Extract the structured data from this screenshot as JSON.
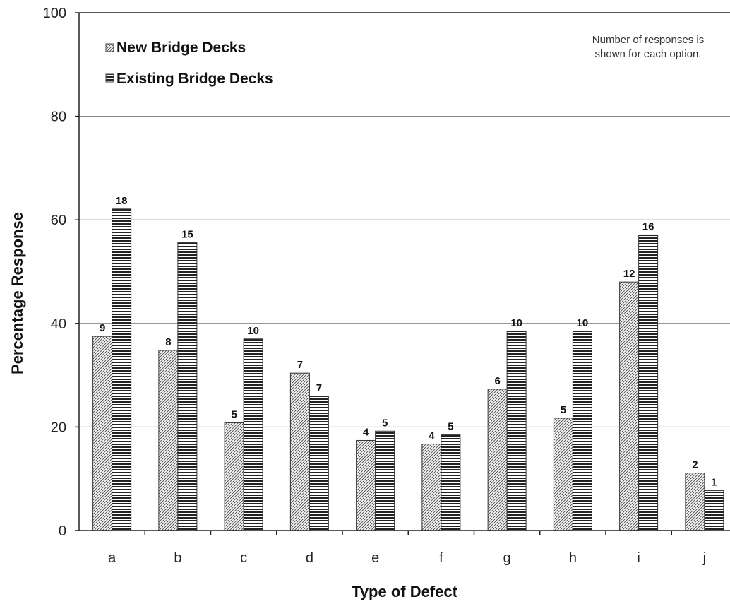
{
  "chart_data": {
    "type": "bar",
    "xlabel": "Type of Defect",
    "ylabel": "Percentage Response",
    "ylim": [
      0,
      100
    ],
    "y_ticks": [
      "0",
      "20",
      "40",
      "60",
      "80",
      "100"
    ],
    "grid": true,
    "legend_position": "top-left",
    "note": [
      "Number of responses is",
      "shown for each option."
    ],
    "categories": [
      "a",
      "b",
      "c",
      "d",
      "e",
      "f",
      "g",
      "h",
      "i",
      "j"
    ],
    "series": [
      {
        "name": "New Bridge Decks",
        "pattern": "diagonal-hatch",
        "values": [
          37.5,
          34.8,
          20.8,
          30.4,
          17.4,
          16.7,
          27.3,
          21.7,
          48.0,
          11.1
        ],
        "labels": [
          "9",
          "8",
          "5",
          "7",
          "4",
          "4",
          "6",
          "5",
          "12",
          "2"
        ]
      },
      {
        "name": "Existing Bridge Decks",
        "pattern": "horizontal-stripes",
        "values": [
          62.1,
          55.6,
          37.0,
          25.9,
          19.2,
          18.5,
          38.5,
          38.5,
          57.1,
          7.7
        ],
        "labels": [
          "18",
          "15",
          "10",
          "7",
          "5",
          "5",
          "10",
          "10",
          "16",
          "1"
        ]
      }
    ]
  }
}
